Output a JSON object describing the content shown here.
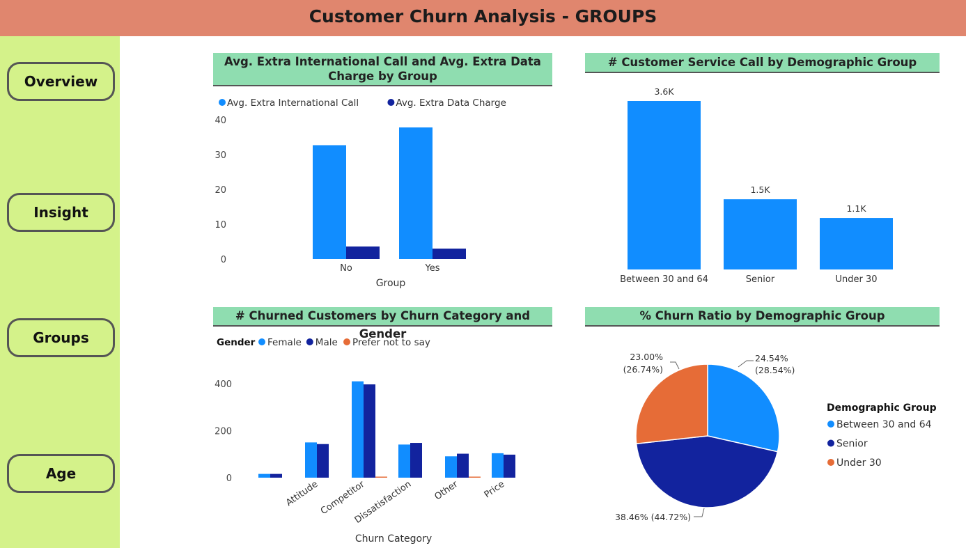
{
  "header": {
    "title": "Customer Churn Analysis - GROUPS"
  },
  "nav": {
    "items": [
      "Overview",
      "Insight",
      "Groups",
      "Age"
    ]
  },
  "colors": {
    "light_blue": "#118dff",
    "dark_blue": "#12239e",
    "orange": "#e66c37",
    "header_bg": "#e0866e",
    "sidebar_bg": "#d4f28a",
    "title_bg": "#8fddb0"
  },
  "chart_data": [
    {
      "type": "bar",
      "title": "Avg. Extra International Call and Avg. Extra Data Charge by Group",
      "categories": [
        "No",
        "Yes"
      ],
      "series": [
        {
          "name": "Avg. Extra International Call",
          "values": [
            32.7,
            37.8
          ]
        },
        {
          "name": "Avg. Extra Data Charge",
          "values": [
            3.6,
            3.0
          ]
        }
      ],
      "xlabel": "Group",
      "ylabel": "",
      "ylim": [
        0,
        40
      ],
      "yticks": [
        "0",
        "10",
        "20",
        "30",
        "40"
      ],
      "legend": "top-left",
      "grid": false
    },
    {
      "type": "bar",
      "title": "# Customer Service Call by Demographic Group",
      "categories": [
        "Between 30 and 64",
        "Senior",
        "Under 30"
      ],
      "values": [
        3600,
        1500,
        1100
      ],
      "data_labels": [
        "3.6K",
        "1.5K",
        "1.1K"
      ],
      "xlabel": "",
      "ylabel": "",
      "grid": false
    },
    {
      "type": "bar",
      "title": "# Churned Customers by Churn Category and Gender",
      "legend_title": "Gender",
      "categories": [
        "",
        "Attitude",
        "Competitor",
        "Dissatisfaction",
        "Other",
        "Price"
      ],
      "series": [
        {
          "name": "Female",
          "values": [
            16,
            150,
            410,
            141,
            91,
            104
          ]
        },
        {
          "name": "Male",
          "values": [
            16,
            143,
            397,
            148,
            102,
            98
          ]
        },
        {
          "name": "Prefer not to say",
          "values": [
            0,
            0,
            3,
            0,
            3,
            0
          ]
        }
      ],
      "xlabel": "Churn Category",
      "ylabel": "",
      "yticks": [
        "0",
        "200",
        "400"
      ],
      "legend": "top-left",
      "grid": false
    },
    {
      "type": "pie",
      "title": "% Churn Ratio by Demographic Group",
      "legend_title": "Demographic Group",
      "slices": [
        {
          "name": "Between 30 and 64",
          "value": 28.54,
          "label": "24.54%\n(28.54%)"
        },
        {
          "name": "Senior",
          "value": 44.72,
          "label": "38.46% (44.72%)"
        },
        {
          "name": "Under 30",
          "value": 26.74,
          "label": "23.00%\n(26.74%)"
        }
      ],
      "legend": "right"
    }
  ]
}
